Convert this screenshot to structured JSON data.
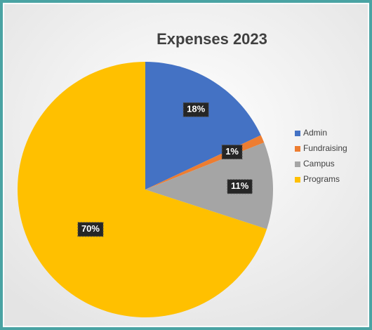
{
  "chart_data": {
    "type": "pie",
    "title": "Expenses 2023",
    "categories": [
      "Admin",
      "Fundraising",
      "Campus",
      "Programs"
    ],
    "values": [
      18,
      1,
      11,
      70
    ],
    "value_labels": [
      "18%",
      "1%",
      "11%",
      "70%"
    ],
    "colors": [
      "#4472c4",
      "#ed7d31",
      "#a5a5a5",
      "#ffc000"
    ],
    "legend": "right"
  }
}
